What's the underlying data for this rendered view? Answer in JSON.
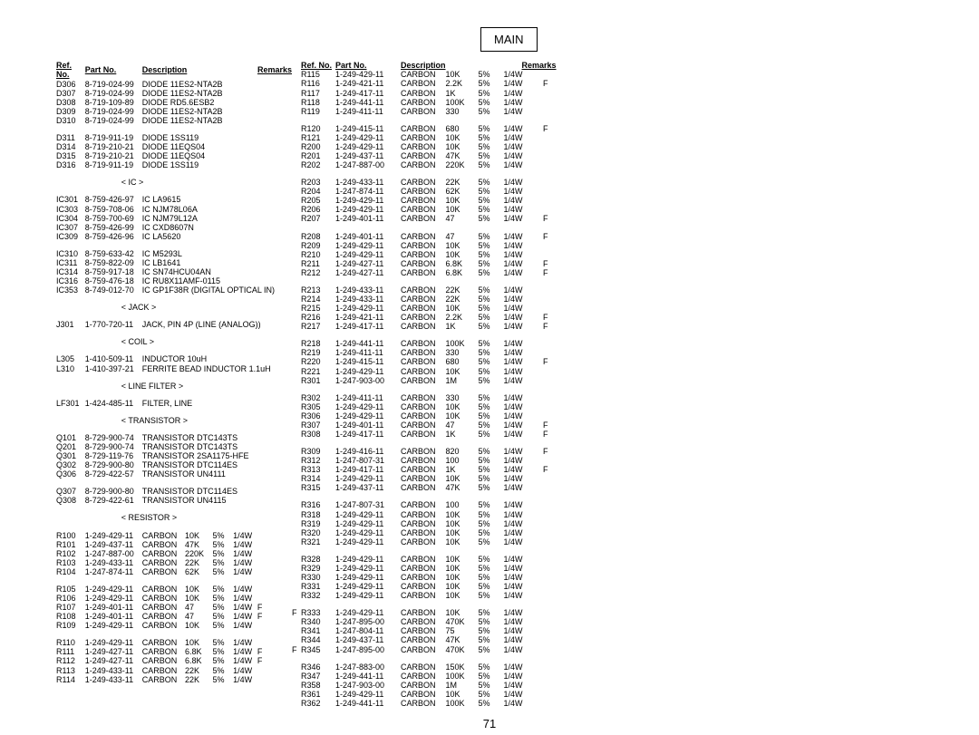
{
  "page_title": "MAIN",
  "page_number": "71",
  "headers": {
    "ref": "Ref. No.",
    "part": "Part No.",
    "desc": "Description",
    "remarks": "Remarks"
  },
  "sections": {
    "ic": "< IC >",
    "jack": "< JACK >",
    "coil": "< COIL >",
    "linefilter": "< LINE FILTER >",
    "transistor": "< TRANSISTOR >",
    "resistor": "< RESISTOR >"
  },
  "left": [
    {
      "ref": "D306",
      "part": "8-719-024-99",
      "desc": "DIODE  11ES2-NTA2B"
    },
    {
      "ref": "D307",
      "part": "8-719-024-99",
      "desc": "DIODE  11ES2-NTA2B"
    },
    {
      "ref": "D308",
      "part": "8-719-109-89",
      "desc": "DIODE  RD5.6ESB2"
    },
    {
      "ref": "D309",
      "part": "8-719-024-99",
      "desc": "DIODE  11ES2-NTA2B"
    },
    {
      "ref": "D310",
      "part": "8-719-024-99",
      "desc": "DIODE  11ES2-NTA2B"
    },
    null,
    {
      "ref": "D311",
      "part": "8-719-911-19",
      "desc": "DIODE  1SS119"
    },
    {
      "ref": "D314",
      "part": "8-719-210-21",
      "desc": "DIODE  11EQS04"
    },
    {
      "ref": "D315",
      "part": "8-719-210-21",
      "desc": "DIODE  11EQS04"
    },
    {
      "ref": "D316",
      "part": "8-719-911-19",
      "desc": "DIODE  1SS119"
    },
    null,
    {
      "section": "ic"
    },
    null,
    {
      "ref": "IC301",
      "part": "8-759-426-97",
      "desc": "IC  LA9615"
    },
    {
      "ref": "IC303",
      "part": "8-759-708-06",
      "desc": "IC  NJM78L06A"
    },
    {
      "ref": "IC304",
      "part": "8-759-700-69",
      "desc": "IC  NJM79L12A"
    },
    {
      "ref": "IC307",
      "part": "8-759-426-99",
      "desc": "IC  CXD8607N"
    },
    {
      "ref": "IC309",
      "part": "8-759-426-96",
      "desc": "IC  LA5620"
    },
    null,
    {
      "ref": "IC310",
      "part": "8-759-633-42",
      "desc": "IC  M5293L"
    },
    {
      "ref": "IC311",
      "part": "8-759-822-09",
      "desc": "IC  LB1641"
    },
    {
      "ref": "IC314",
      "part": "8-759-917-18",
      "desc": "IC  SN74HCU04AN"
    },
    {
      "ref": "IC316",
      "part": "8-759-476-18",
      "desc": "IC  RU8X11AMF-0115"
    },
    {
      "ref": "IC353",
      "part": "8-749-012-70",
      "desc": "IC  GP1F38R (DIGITAL OPTICAL IN)"
    },
    null,
    {
      "section": "jack"
    },
    null,
    {
      "ref": "J301",
      "part": "1-770-720-11",
      "desc": "JACK, PIN 4P (LINE (ANALOG))"
    },
    null,
    {
      "section": "coil"
    },
    null,
    {
      "ref": "L305",
      "part": "1-410-509-11",
      "desc": "INDUCTOR        10uH"
    },
    {
      "ref": "L310",
      "part": "1-410-397-21",
      "desc": "FERRITE BEAD INDUCTOR 1.1uH"
    },
    null,
    {
      "section": "linefilter"
    },
    null,
    {
      "ref": "LF301",
      "part": "1-424-485-11",
      "desc": "FILTER, LINE"
    },
    null,
    {
      "section": "transistor"
    },
    null,
    {
      "ref": "Q101",
      "part": "8-729-900-74",
      "desc": "TRANSISTOR  DTC143TS"
    },
    {
      "ref": "Q201",
      "part": "8-729-900-74",
      "desc": "TRANSISTOR  DTC143TS"
    },
    {
      "ref": "Q301",
      "part": "8-729-119-76",
      "desc": "TRANSISTOR  2SA1175-HFE"
    },
    {
      "ref": "Q302",
      "part": "8-729-900-80",
      "desc": "TRANSISTOR  DTC114ES"
    },
    {
      "ref": "Q306",
      "part": "8-729-422-57",
      "desc": "TRANSISTOR  UN4111"
    },
    null,
    {
      "ref": "Q307",
      "part": "8-729-900-80",
      "desc": "TRANSISTOR  DTC114ES"
    },
    {
      "ref": "Q308",
      "part": "8-729-422-61",
      "desc": "TRANSISTOR  UN4115"
    },
    null,
    {
      "section": "resistor"
    }
  ],
  "left_resistors": [
    {
      "ref": "R100",
      "part": "1-249-429-11",
      "desc": "CARBON",
      "val": "10K",
      "tol": "5%",
      "pow": "1/4W"
    },
    {
      "ref": "R101",
      "part": "1-249-437-11",
      "desc": "CARBON",
      "val": "47K",
      "tol": "5%",
      "pow": "1/4W"
    },
    {
      "ref": "R102",
      "part": "1-247-887-00",
      "desc": "CARBON",
      "val": "220K",
      "tol": "5%",
      "pow": "1/4W"
    },
    {
      "ref": "R103",
      "part": "1-249-433-11",
      "desc": "CARBON",
      "val": "22K",
      "tol": "5%",
      "pow": "1/4W"
    },
    {
      "ref": "R104",
      "part": "1-247-874-11",
      "desc": "CARBON",
      "val": "62K",
      "tol": "5%",
      "pow": "1/4W"
    },
    null,
    {
      "ref": "R105",
      "part": "1-249-429-11",
      "desc": "CARBON",
      "val": "10K",
      "tol": "5%",
      "pow": "1/4W"
    },
    {
      "ref": "R106",
      "part": "1-249-429-11",
      "desc": "CARBON",
      "val": "10K",
      "tol": "5%",
      "pow": "1/4W"
    },
    {
      "ref": "R107",
      "part": "1-249-401-11",
      "desc": "CARBON",
      "val": "47",
      "tol": "5%",
      "pow": "1/4W",
      "f": "F"
    },
    {
      "ref": "R108",
      "part": "1-249-401-11",
      "desc": "CARBON",
      "val": "47",
      "tol": "5%",
      "pow": "1/4W",
      "f": "F"
    },
    {
      "ref": "R109",
      "part": "1-249-429-11",
      "desc": "CARBON",
      "val": "10K",
      "tol": "5%",
      "pow": "1/4W"
    },
    null,
    {
      "ref": "R110",
      "part": "1-249-429-11",
      "desc": "CARBON",
      "val": "10K",
      "tol": "5%",
      "pow": "1/4W"
    },
    {
      "ref": "R111",
      "part": "1-249-427-11",
      "desc": "CARBON",
      "val": "6.8K",
      "tol": "5%",
      "pow": "1/4W",
      "f": "F"
    },
    {
      "ref": "R112",
      "part": "1-249-427-11",
      "desc": "CARBON",
      "val": "6.8K",
      "tol": "5%",
      "pow": "1/4W",
      "f": "F"
    },
    {
      "ref": "R113",
      "part": "1-249-433-11",
      "desc": "CARBON",
      "val": "22K",
      "tol": "5%",
      "pow": "1/4W"
    },
    {
      "ref": "R114",
      "part": "1-249-433-11",
      "desc": "CARBON",
      "val": "22K",
      "tol": "5%",
      "pow": "1/4W"
    }
  ],
  "right": [
    {
      "ref": "R115",
      "part": "1-249-429-11",
      "desc": "CARBON",
      "val": "10K",
      "tol": "5%",
      "pow": "1/4W"
    },
    {
      "ref": "R116",
      "part": "1-249-421-11",
      "desc": "CARBON",
      "val": "2.2K",
      "tol": "5%",
      "pow": "1/4W",
      "f": "F"
    },
    {
      "ref": "R117",
      "part": "1-249-417-11",
      "desc": "CARBON",
      "val": "1K",
      "tol": "5%",
      "pow": "1/4W"
    },
    {
      "ref": "R118",
      "part": "1-249-441-11",
      "desc": "CARBON",
      "val": "100K",
      "tol": "5%",
      "pow": "1/4W"
    },
    {
      "ref": "R119",
      "part": "1-249-411-11",
      "desc": "CARBON",
      "val": "330",
      "tol": "5%",
      "pow": "1/4W"
    },
    null,
    {
      "ref": "R120",
      "part": "1-249-415-11",
      "desc": "CARBON",
      "val": "680",
      "tol": "5%",
      "pow": "1/4W",
      "f": "F"
    },
    {
      "ref": "R121",
      "part": "1-249-429-11",
      "desc": "CARBON",
      "val": "10K",
      "tol": "5%",
      "pow": "1/4W"
    },
    {
      "ref": "R200",
      "part": "1-249-429-11",
      "desc": "CARBON",
      "val": "10K",
      "tol": "5%",
      "pow": "1/4W"
    },
    {
      "ref": "R201",
      "part": "1-249-437-11",
      "desc": "CARBON",
      "val": "47K",
      "tol": "5%",
      "pow": "1/4W"
    },
    {
      "ref": "R202",
      "part": "1-247-887-00",
      "desc": "CARBON",
      "val": "220K",
      "tol": "5%",
      "pow": "1/4W"
    },
    null,
    {
      "ref": "R203",
      "part": "1-249-433-11",
      "desc": "CARBON",
      "val": "22K",
      "tol": "5%",
      "pow": "1/4W"
    },
    {
      "ref": "R204",
      "part": "1-247-874-11",
      "desc": "CARBON",
      "val": "62K",
      "tol": "5%",
      "pow": "1/4W"
    },
    {
      "ref": "R205",
      "part": "1-249-429-11",
      "desc": "CARBON",
      "val": "10K",
      "tol": "5%",
      "pow": "1/4W"
    },
    {
      "ref": "R206",
      "part": "1-249-429-11",
      "desc": "CARBON",
      "val": "10K",
      "tol": "5%",
      "pow": "1/4W"
    },
    {
      "ref": "R207",
      "part": "1-249-401-11",
      "desc": "CARBON",
      "val": "47",
      "tol": "5%",
      "pow": "1/4W",
      "f": "F"
    },
    null,
    {
      "ref": "R208",
      "part": "1-249-401-11",
      "desc": "CARBON",
      "val": "47",
      "tol": "5%",
      "pow": "1/4W",
      "f": "F"
    },
    {
      "ref": "R209",
      "part": "1-249-429-11",
      "desc": "CARBON",
      "val": "10K",
      "tol": "5%",
      "pow": "1/4W"
    },
    {
      "ref": "R210",
      "part": "1-249-429-11",
      "desc": "CARBON",
      "val": "10K",
      "tol": "5%",
      "pow": "1/4W"
    },
    {
      "ref": "R211",
      "part": "1-249-427-11",
      "desc": "CARBON",
      "val": "6.8K",
      "tol": "5%",
      "pow": "1/4W",
      "f": "F"
    },
    {
      "ref": "R212",
      "part": "1-249-427-11",
      "desc": "CARBON",
      "val": "6.8K",
      "tol": "5%",
      "pow": "1/4W",
      "f": "F"
    },
    null,
    {
      "ref": "R213",
      "part": "1-249-433-11",
      "desc": "CARBON",
      "val": "22K",
      "tol": "5%",
      "pow": "1/4W"
    },
    {
      "ref": "R214",
      "part": "1-249-433-11",
      "desc": "CARBON",
      "val": "22K",
      "tol": "5%",
      "pow": "1/4W"
    },
    {
      "ref": "R215",
      "part": "1-249-429-11",
      "desc": "CARBON",
      "val": "10K",
      "tol": "5%",
      "pow": "1/4W"
    },
    {
      "ref": "R216",
      "part": "1-249-421-11",
      "desc": "CARBON",
      "val": "2.2K",
      "tol": "5%",
      "pow": "1/4W",
      "f": "F"
    },
    {
      "ref": "R217",
      "part": "1-249-417-11",
      "desc": "CARBON",
      "val": "1K",
      "tol": "5%",
      "pow": "1/4W",
      "f": "F"
    },
    null,
    {
      "ref": "R218",
      "part": "1-249-441-11",
      "desc": "CARBON",
      "val": "100K",
      "tol": "5%",
      "pow": "1/4W"
    },
    {
      "ref": "R219",
      "part": "1-249-411-11",
      "desc": "CARBON",
      "val": "330",
      "tol": "5%",
      "pow": "1/4W"
    },
    {
      "ref": "R220",
      "part": "1-249-415-11",
      "desc": "CARBON",
      "val": "680",
      "tol": "5%",
      "pow": "1/4W",
      "f": "F"
    },
    {
      "ref": "R221",
      "part": "1-249-429-11",
      "desc": "CARBON",
      "val": "10K",
      "tol": "5%",
      "pow": "1/4W"
    },
    {
      "ref": "R301",
      "part": "1-247-903-00",
      "desc": "CARBON",
      "val": "1M",
      "tol": "5%",
      "pow": "1/4W"
    },
    null,
    {
      "ref": "R302",
      "part": "1-249-411-11",
      "desc": "CARBON",
      "val": "330",
      "tol": "5%",
      "pow": "1/4W"
    },
    {
      "ref": "R305",
      "part": "1-249-429-11",
      "desc": "CARBON",
      "val": "10K",
      "tol": "5%",
      "pow": "1/4W"
    },
    {
      "ref": "R306",
      "part": "1-249-429-11",
      "desc": "CARBON",
      "val": "10K",
      "tol": "5%",
      "pow": "1/4W"
    },
    {
      "ref": "R307",
      "part": "1-249-401-11",
      "desc": "CARBON",
      "val": "47",
      "tol": "5%",
      "pow": "1/4W",
      "f": "F"
    },
    {
      "ref": "R308",
      "part": "1-249-417-11",
      "desc": "CARBON",
      "val": "1K",
      "tol": "5%",
      "pow": "1/4W",
      "f": "F"
    },
    null,
    {
      "ref": "R309",
      "part": "1-249-416-11",
      "desc": "CARBON",
      "val": "820",
      "tol": "5%",
      "pow": "1/4W",
      "f": "F"
    },
    {
      "ref": "R312",
      "part": "1-247-807-31",
      "desc": "CARBON",
      "val": "100",
      "tol": "5%",
      "pow": "1/4W"
    },
    {
      "ref": "R313",
      "part": "1-249-417-11",
      "desc": "CARBON",
      "val": "1K",
      "tol": "5%",
      "pow": "1/4W",
      "f": "F"
    },
    {
      "ref": "R314",
      "part": "1-249-429-11",
      "desc": "CARBON",
      "val": "10K",
      "tol": "5%",
      "pow": "1/4W"
    },
    {
      "ref": "R315",
      "part": "1-249-437-11",
      "desc": "CARBON",
      "val": "47K",
      "tol": "5%",
      "pow": "1/4W"
    },
    null,
    {
      "ref": "R316",
      "part": "1-247-807-31",
      "desc": "CARBON",
      "val": "100",
      "tol": "5%",
      "pow": "1/4W"
    },
    {
      "ref": "R318",
      "part": "1-249-429-11",
      "desc": "CARBON",
      "val": "10K",
      "tol": "5%",
      "pow": "1/4W"
    },
    {
      "ref": "R319",
      "part": "1-249-429-11",
      "desc": "CARBON",
      "val": "10K",
      "tol": "5%",
      "pow": "1/4W"
    },
    {
      "ref": "R320",
      "part": "1-249-429-11",
      "desc": "CARBON",
      "val": "10K",
      "tol": "5%",
      "pow": "1/4W"
    },
    {
      "ref": "R321",
      "part": "1-249-429-11",
      "desc": "CARBON",
      "val": "10K",
      "tol": "5%",
      "pow": "1/4W"
    },
    null,
    {
      "ref": "R328",
      "part": "1-249-429-11",
      "desc": "CARBON",
      "val": "10K",
      "tol": "5%",
      "pow": "1/4W"
    },
    {
      "ref": "R329",
      "part": "1-249-429-11",
      "desc": "CARBON",
      "val": "10K",
      "tol": "5%",
      "pow": "1/4W"
    },
    {
      "ref": "R330",
      "part": "1-249-429-11",
      "desc": "CARBON",
      "val": "10K",
      "tol": "5%",
      "pow": "1/4W"
    },
    {
      "ref": "R331",
      "part": "1-249-429-11",
      "desc": "CARBON",
      "val": "10K",
      "tol": "5%",
      "pow": "1/4W"
    },
    {
      "ref": "R332",
      "part": "1-249-429-11",
      "desc": "CARBON",
      "val": "10K",
      "tol": "5%",
      "pow": "1/4W"
    },
    null,
    {
      "pref": "F",
      "ref": "R333",
      "part": "1-249-429-11",
      "desc": "CARBON",
      "val": "10K",
      "tol": "5%",
      "pow": "1/4W"
    },
    {
      "ref": "R340",
      "part": "1-247-895-00",
      "desc": "CARBON",
      "val": "470K",
      "tol": "5%",
      "pow": "1/4W"
    },
    {
      "ref": "R341",
      "part": "1-247-804-11",
      "desc": "CARBON",
      "val": "75",
      "tol": "5%",
      "pow": "1/4W"
    },
    {
      "ref": "R344",
      "part": "1-249-437-11",
      "desc": "CARBON",
      "val": "47K",
      "tol": "5%",
      "pow": "1/4W"
    },
    {
      "pref": "F",
      "ref": "R345",
      "part": "1-247-895-00",
      "desc": "CARBON",
      "val": "470K",
      "tol": "5%",
      "pow": "1/4W"
    },
    null,
    {
      "ref": "R346",
      "part": "1-247-883-00",
      "desc": "CARBON",
      "val": "150K",
      "tol": "5%",
      "pow": "1/4W"
    },
    {
      "ref": "R347",
      "part": "1-249-441-11",
      "desc": "CARBON",
      "val": "100K",
      "tol": "5%",
      "pow": "1/4W"
    },
    {
      "ref": "R358",
      "part": "1-247-903-00",
      "desc": "CARBON",
      "val": "1M",
      "tol": "5%",
      "pow": "1/4W"
    },
    {
      "ref": "R361",
      "part": "1-249-429-11",
      "desc": "CARBON",
      "val": "10K",
      "tol": "5%",
      "pow": "1/4W"
    },
    {
      "ref": "R362",
      "part": "1-249-441-11",
      "desc": "CARBON",
      "val": "100K",
      "tol": "5%",
      "pow": "1/4W"
    }
  ]
}
